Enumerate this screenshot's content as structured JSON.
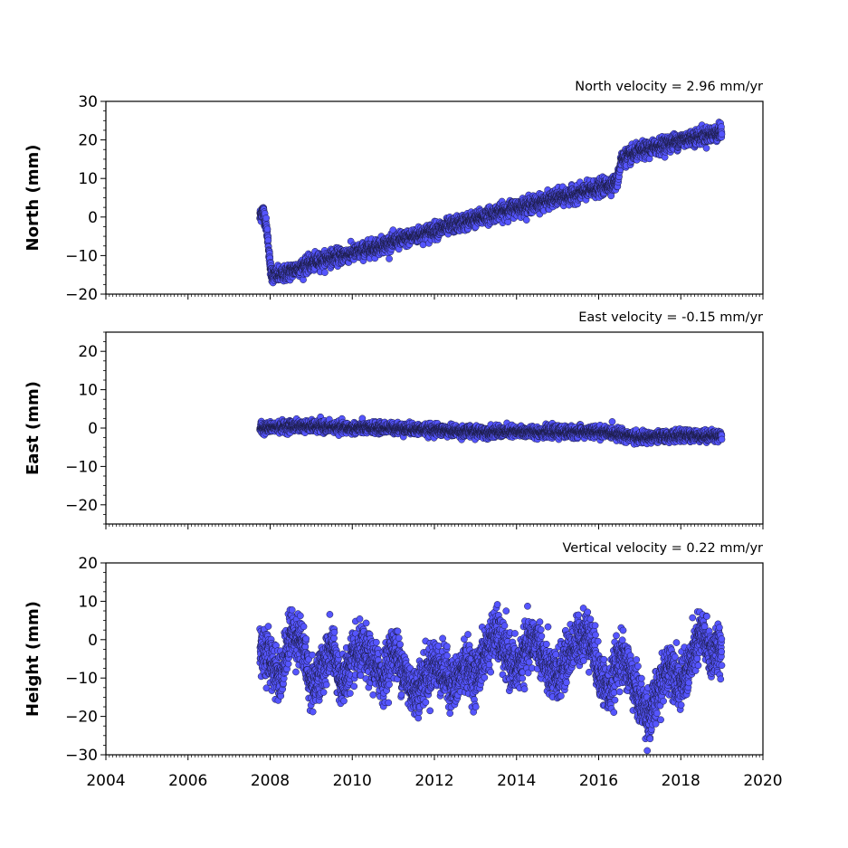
{
  "chart_data": [
    {
      "type": "scatter",
      "annotation": "North velocity = 2.96 mm/yr",
      "ylabel": "North (mm)",
      "xlim": [
        2004,
        2020
      ],
      "ylim": [
        -20,
        30
      ],
      "yticks": [
        -20,
        -10,
        0,
        10,
        20,
        30
      ],
      "ytick_labels": [
        "−20",
        "−10",
        "0",
        "10",
        "20",
        "30"
      ],
      "series": [
        {
          "x": [
            2007.75,
            2007.8,
            2007.85,
            2007.9,
            2007.95,
            2008.0,
            2008.05,
            2008.15,
            2008.3,
            2008.5,
            2008.75,
            2009.0,
            2009.5,
            2010.0,
            2010.5,
            2011.0,
            2011.5,
            2012.0,
            2012.5,
            2013.0,
            2013.5,
            2014.0,
            2014.5,
            2015.0,
            2015.5,
            2016.0,
            2016.45,
            2016.55,
            2016.8,
            2017.0,
            2017.5,
            2018.0,
            2018.5,
            2019.0
          ],
          "y": [
            0,
            1.5,
            1,
            -2,
            -6,
            -13,
            -15,
            -15,
            -15,
            -14,
            -13,
            -12,
            -10.5,
            -9.5,
            -8,
            -6.5,
            -5,
            -3.5,
            -2,
            -0.5,
            1,
            2.5,
            3.5,
            5,
            6,
            7.5,
            9,
            15,
            16,
            17,
            18.5,
            20,
            21,
            22
          ]
        }
      ]
    },
    {
      "type": "scatter",
      "annotation": "East velocity = -0.15 mm/yr",
      "ylabel": "East (mm)",
      "xlim": [
        2004,
        2020
      ],
      "ylim": [
        -25,
        25
      ],
      "yticks": [
        -20,
        -10,
        0,
        10,
        20
      ],
      "ytick_labels": [
        "−20",
        "−10",
        "0",
        "10",
        "20"
      ],
      "series": [
        {
          "x": [
            2007.75,
            2008.5,
            2009.0,
            2010.0,
            2011.0,
            2012.0,
            2013.0,
            2014.0,
            2015.0,
            2016.0,
            2016.5,
            2017.0,
            2018.0,
            2019.0
          ],
          "y": [
            0,
            0.5,
            0.5,
            0,
            0,
            -0.5,
            -1,
            -1,
            -1,
            -1,
            -1.5,
            -2.5,
            -2,
            -2
          ]
        }
      ]
    },
    {
      "type": "scatter",
      "annotation": "Vertical velocity = 0.22 mm/yr",
      "ylabel": "Height (mm)",
      "xlim": [
        2004,
        2020
      ],
      "ylim": [
        -30,
        20
      ],
      "yticks": [
        -30,
        -20,
        -10,
        0,
        10,
        20
      ],
      "ytick_labels": [
        "−30",
        "−20",
        "−10",
        "0",
        "10",
        "20"
      ],
      "xticks": [
        2004,
        2006,
        2008,
        2010,
        2012,
        2014,
        2016,
        2018,
        2020
      ],
      "xtick_labels": [
        "2004",
        "2006",
        "2008",
        "2010",
        "2012",
        "2014",
        "2016",
        "2018",
        "2020"
      ],
      "series": [
        {
          "x": [
            2007.75,
            2008.0,
            2008.25,
            2008.5,
            2008.75,
            2009.0,
            2009.25,
            2009.5,
            2009.75,
            2010.0,
            2010.25,
            2010.5,
            2010.75,
            2011.0,
            2011.25,
            2011.5,
            2011.75,
            2012.0,
            2012.25,
            2012.5,
            2012.75,
            2013.0,
            2013.25,
            2013.5,
            2013.75,
            2014.0,
            2014.25,
            2014.5,
            2014.75,
            2015.0,
            2015.25,
            2015.5,
            2015.75,
            2016.0,
            2016.25,
            2016.5,
            2016.75,
            2017.0,
            2017.25,
            2017.5,
            2017.75,
            2018.0,
            2018.25,
            2018.5,
            2018.75,
            2019.0
          ],
          "y": [
            -2,
            -5,
            -10,
            2,
            0,
            -12,
            -8,
            -2,
            -12,
            -5,
            -3,
            -6,
            -10,
            -2,
            -8,
            -14,
            -10,
            -6,
            -9,
            -12,
            -6,
            -10,
            -3,
            2,
            -4,
            -8,
            -2,
            0,
            -8,
            -10,
            -4,
            0,
            2,
            -8,
            -14,
            -4,
            -8,
            -16,
            -20,
            -12,
            -6,
            -12,
            -6,
            2,
            -4,
            -2
          ]
        }
      ]
    }
  ],
  "style": {
    "marker_fill": "#5555ff",
    "marker_edge": "#1a1a40",
    "axis_color": "#000000"
  }
}
